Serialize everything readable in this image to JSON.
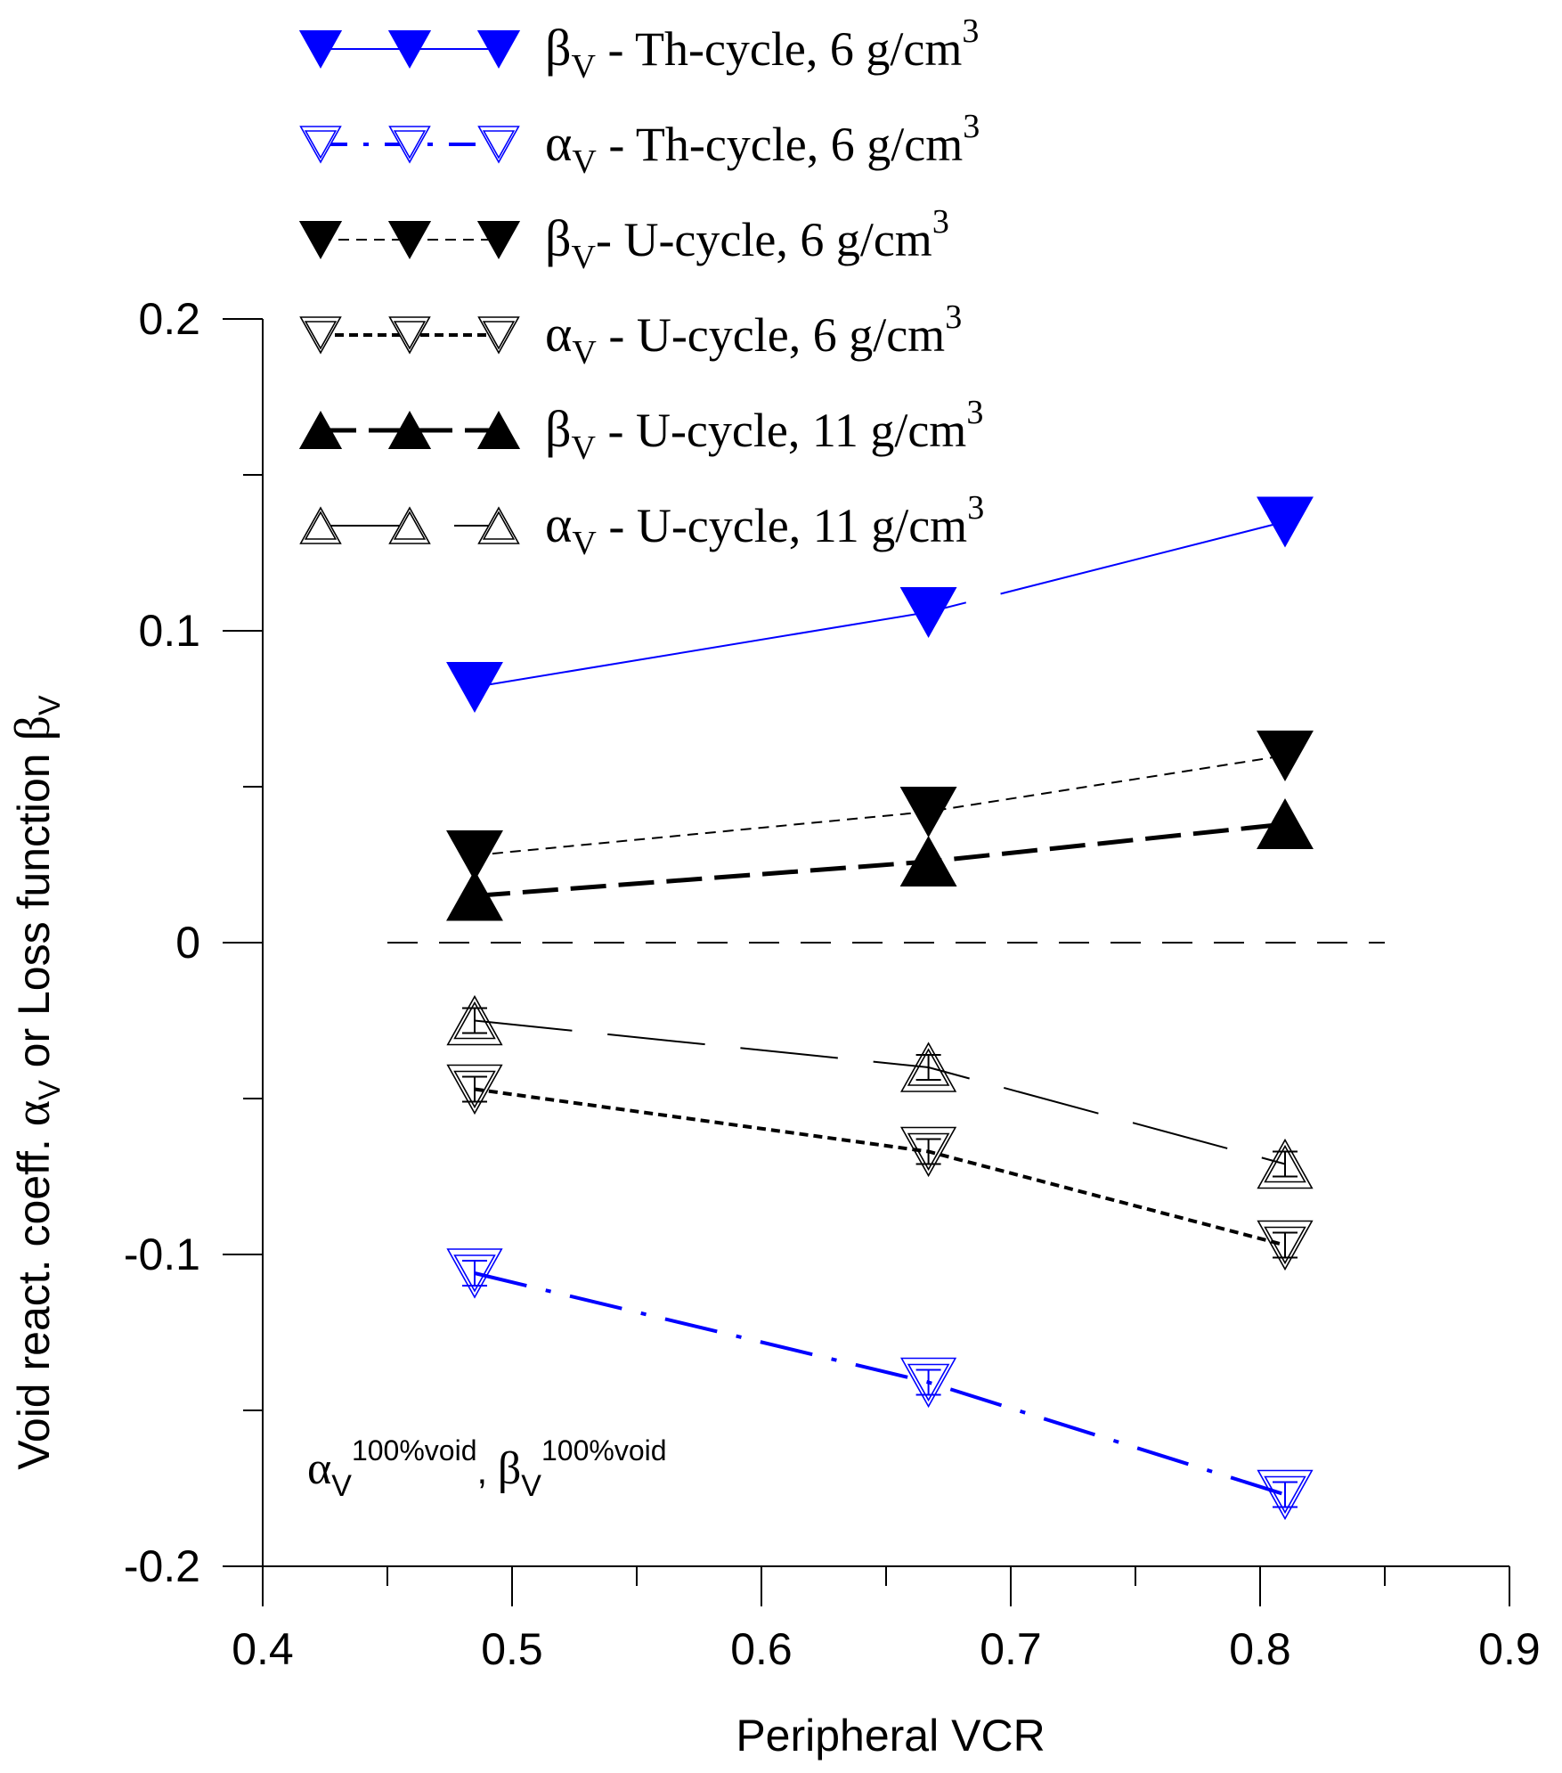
{
  "chart_data": {
    "type": "line",
    "xlabel": "Peripheral VCR",
    "ylabel": {
      "prefix": "Void react. coeff. ",
      "alpha": "α",
      "sub": "V",
      "middle": " or Loss function ",
      "beta": "β",
      "sub2": "V"
    },
    "xlim": [
      0.4,
      0.9
    ],
    "ylim": [
      -0.2,
      0.2
    ],
    "x_ticks": [
      "0.4",
      "0.5",
      "0.6",
      "0.7",
      "0.8",
      "0.9"
    ],
    "y_ticks": [
      "-0.2",
      "-0.1",
      "0",
      "0.1",
      "0.2"
    ],
    "x_tick_values": [
      0.4,
      0.5,
      0.6,
      0.7,
      0.8,
      0.9
    ],
    "y_tick_values": [
      -0.2,
      -0.1,
      0,
      0.1,
      0.2
    ],
    "zero_line": {
      "x": [
        0.45,
        0.85
      ],
      "y": 0
    },
    "annotation": {
      "alpha": "α",
      "sub": "V",
      "sup": "100%void",
      "sep": ", ",
      "beta": "β",
      "sub2": "V",
      "sup2": "100%void"
    },
    "series": [
      {
        "name": "βV - Th-cycle, 6 g/cm3",
        "greek": "β",
        "sub": "V",
        "text": " - Th-cycle, 6 g/cm",
        "sup": "3",
        "x": [
          0.485,
          0.667,
          0.81
        ],
        "y": [
          0.082,
          0.106,
          0.135
        ],
        "marker": "down",
        "filled": true,
        "color": "#0000ff",
        "dash": "long",
        "error": false
      },
      {
        "name": "αV - Th-cycle, 6 g/cm3",
        "greek": "α",
        "sub": "V",
        "text": " - Th-cycle, 6 g/cm",
        "sup": "3",
        "x": [
          0.485,
          0.667,
          0.81
        ],
        "y": [
          -0.106,
          -0.141,
          -0.177
        ],
        "marker": "down",
        "filled": false,
        "color": "#0000ff",
        "dash": "dashdot",
        "error": true
      },
      {
        "name": "βV- U-cycle, 6 g/cm3",
        "greek": "β",
        "sub": "V",
        "text": "- U-cycle, 6 g/cm",
        "sup": "3",
        "x": [
          0.485,
          0.667,
          0.81
        ],
        "y": [
          0.028,
          0.042,
          0.06
        ],
        "marker": "down",
        "filled": true,
        "color": "#000000",
        "dash": "short",
        "error": false
      },
      {
        "name": "αV - U-cycle, 6 g/cm3",
        "greek": "α",
        "sub": "V",
        "text": " - U-cycle, 6 g/cm",
        "sup": "3",
        "x": [
          0.485,
          0.667,
          0.81
        ],
        "y": [
          -0.047,
          -0.067,
          -0.097
        ],
        "marker": "down",
        "filled": false,
        "color": "#000000",
        "dash": "dense",
        "error": true
      },
      {
        "name": "βV - U-cycle, 11 g/cm3",
        "greek": "β",
        "sub": "V",
        "text": " - U-cycle, 11 g/cm",
        "sup": "3",
        "x": [
          0.485,
          0.667,
          0.81
        ],
        "y": [
          0.015,
          0.026,
          0.038
        ],
        "marker": "up",
        "filled": true,
        "color": "#000000",
        "dash": "medium",
        "error": false
      },
      {
        "name": "αV - U-cycle, 11 g/cm3",
        "greek": "α",
        "sub": "V",
        "text": " - U-cycle, 11 g/cm",
        "sup": "3",
        "x": [
          0.485,
          0.667,
          0.81
        ],
        "y": [
          -0.025,
          -0.04,
          -0.071
        ],
        "marker": "up",
        "filled": false,
        "color": "#000000",
        "dash": "longsparse",
        "error": true
      }
    ]
  }
}
